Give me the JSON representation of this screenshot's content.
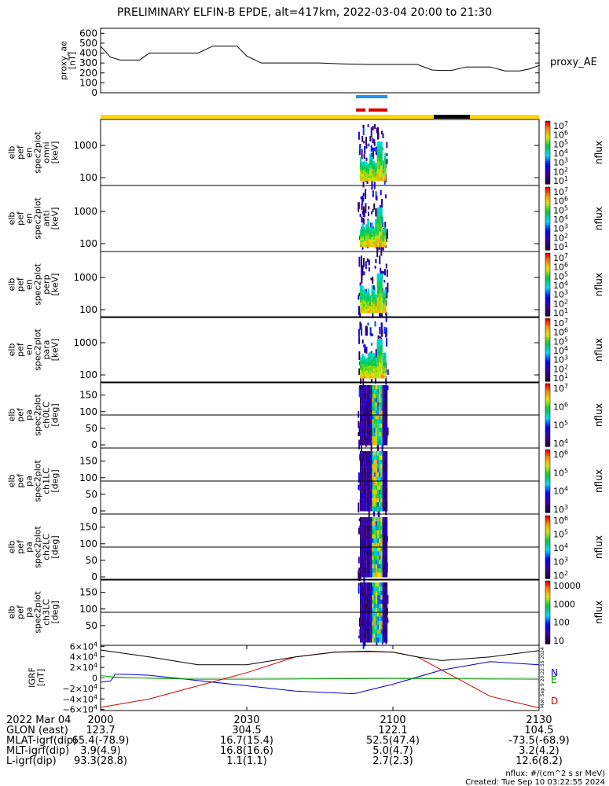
{
  "title": "PRELIMINARY ELFIN-B EPDE, alt=417km, 2022-03-04 20:00 to 21:30",
  "colors": {
    "ae_line": "#000000",
    "sat_bar_yellow": "#ffd700",
    "sat_bar_black": "#000000",
    "marker_blue": "#1e90ff",
    "marker_red": "#e00000",
    "igrf_n": "#0000cc",
    "igrf_e": "#00a000",
    "igrf_d": "#cc0000",
    "igrf_total": "#000000"
  },
  "chart_data": [
    {
      "type": "line",
      "id": "proxy_ae",
      "ylabel": "proxy_ae [nT]",
      "yticks": [
        "600",
        "500",
        "400",
        "300",
        "200",
        "100",
        "0"
      ],
      "ylim": [
        0,
        650
      ],
      "xlim": [
        0,
        90
      ],
      "series_label": "proxy_AE",
      "x": [
        0,
        2,
        4,
        6,
        8,
        10,
        12,
        15,
        18,
        20,
        23,
        26,
        28,
        30,
        33,
        36,
        40,
        45,
        50,
        55,
        58,
        60,
        62,
        65,
        68,
        70,
        72,
        75,
        78,
        80,
        83,
        86,
        88,
        90
      ],
      "y": [
        470,
        360,
        330,
        330,
        330,
        400,
        400,
        400,
        400,
        400,
        470,
        470,
        470,
        370,
        300,
        300,
        300,
        300,
        290,
        285,
        285,
        285,
        285,
        285,
        230,
        225,
        225,
        260,
        260,
        260,
        220,
        220,
        240,
        275
      ]
    },
    {
      "type": "heatmap",
      "id": "omni",
      "ylabel": "elb pef en spec2plot omni [keV]",
      "yticks": [
        "1000",
        "100"
      ],
      "colorbar": {
        "label": "nflux",
        "ticks": [
          "10^7",
          "10^6",
          "10^5",
          "10^4",
          "10^3",
          "10^2",
          "10^1"
        ]
      }
    },
    {
      "type": "heatmap",
      "id": "anti",
      "ylabel": "elb pef en spec2plot anti [keV]",
      "yticks": [
        "1000",
        "100"
      ],
      "colorbar": {
        "label": "nflux",
        "ticks": [
          "10^7",
          "10^6",
          "10^5",
          "10^4",
          "10^3",
          "10^2",
          "10^1"
        ]
      }
    },
    {
      "type": "heatmap",
      "id": "perp",
      "ylabel": "elb pef en spec2plot perp [keV]",
      "yticks": [
        "1000",
        "100"
      ],
      "colorbar": {
        "label": "nflux",
        "ticks": [
          "10^7",
          "10^6",
          "10^5",
          "10^4",
          "10^3",
          "10^2",
          "10^1"
        ]
      }
    },
    {
      "type": "heatmap",
      "id": "para",
      "ylabel": "elb pef en spec2plot para [keV]",
      "yticks": [
        "1000",
        "100"
      ],
      "colorbar": {
        "label": "nflux",
        "ticks": [
          "10^7",
          "10^6",
          "10^5",
          "10^4",
          "10^3",
          "10^2",
          "10^1"
        ]
      }
    },
    {
      "type": "heatmap",
      "id": "ch0LC",
      "ylabel": "elb pef pa spec2plot ch0LC [deg]",
      "yticks": [
        "150",
        "100",
        "50",
        "0"
      ],
      "colorbar": {
        "label": "nflux",
        "ticks": [
          "10^7",
          "10^6",
          "10^5",
          "10^4"
        ]
      }
    },
    {
      "type": "heatmap",
      "id": "ch1LC",
      "ylabel": "elb pef pa spec2plot ch1LC [deg]",
      "yticks": [
        "150",
        "100",
        "50",
        "0"
      ],
      "colorbar": {
        "label": "nflux",
        "ticks": [
          "10^6",
          "10^5",
          "10^4",
          "10^3"
        ]
      }
    },
    {
      "type": "heatmap",
      "id": "ch2LC",
      "ylabel": "elb pef pa spec2plot ch2LC [deg]",
      "yticks": [
        "150",
        "100",
        "50",
        "0"
      ],
      "colorbar": {
        "label": "nflux",
        "ticks": [
          "10^6",
          "10^5",
          "10^4",
          "10^3",
          "10^2"
        ]
      }
    },
    {
      "type": "heatmap",
      "id": "ch3LC",
      "ylabel": "elb pef pa spec2plot ch3LC [deg]",
      "yticks": [
        "150",
        "100",
        "50"
      ],
      "colorbar": {
        "label": "nflux",
        "ticks": [
          "10000",
          "1000",
          "100",
          "10"
        ]
      }
    },
    {
      "type": "line",
      "id": "igrf",
      "ylabel": "IGRF [nT]",
      "yticks": [
        "6×10^4",
        "4×10^4",
        "2×10^4",
        "0",
        "−2×10^4",
        "−4×10^4",
        "−6×10^4"
      ],
      "ylim": [
        -62000,
        62000
      ],
      "xlim": [
        0,
        90
      ],
      "series": [
        {
          "name": "N",
          "x": [
            0,
            2,
            2.5,
            3,
            5,
            10,
            20,
            30,
            40,
            52,
            60,
            70,
            80,
            90
          ],
          "y": [
            -8000,
            -6000,
            -500,
            7000,
            7000,
            5000,
            -5000,
            -15000,
            -25000,
            -30000,
            -12000,
            15000,
            31000,
            25000
          ]
        },
        {
          "name": "E",
          "x": [
            0,
            3,
            10,
            20,
            30,
            40,
            50,
            60,
            70,
            80,
            90
          ],
          "y": [
            4500,
            1500,
            -500,
            -2500,
            -2500,
            -2000,
            -1500,
            -1000,
            -1500,
            -2000,
            -2500
          ]
        },
        {
          "name": "D",
          "x": [
            0,
            10,
            20,
            30,
            40,
            48,
            55,
            60,
            65,
            70,
            80,
            90
          ],
          "y": [
            -56000,
            -40000,
            -15000,
            10000,
            40000,
            49000,
            50000,
            49000,
            40000,
            15000,
            -35000,
            -57000
          ]
        },
        {
          "name": "",
          "x": [
            0,
            10,
            20,
            30,
            40,
            48,
            55,
            60,
            65,
            70,
            80,
            90
          ],
          "y": [
            53000,
            40000,
            25000,
            25000,
            40000,
            49000,
            51000,
            49000,
            40000,
            33000,
            40000,
            52000
          ]
        }
      ]
    }
  ],
  "xaxis": {
    "ticks": [
      "2000",
      "2030",
      "2100",
      "2130"
    ],
    "rows": [
      {
        "label": "2022 Mar 04",
        "values": [
          "2000",
          "2030",
          "2100",
          "2130"
        ]
      },
      {
        "label": "GLON (east)",
        "values": [
          "123.7",
          "304.5",
          "122.1",
          "104.5"
        ]
      },
      {
        "label": "MLAT-igrf(dip)",
        "values": [
          "65.4(-78.9)",
          "16.7(15.4)",
          "52.5(47.4)",
          "-73.5(-68.9)"
        ]
      },
      {
        "label": "MLT-igrf(dip)",
        "values": [
          "3.9(4.9)",
          "16.8(16.6)",
          "5.0(4.7)",
          "3.2(4.2)"
        ]
      },
      {
        "label": "L-igrf(dip)",
        "values": [
          "93.3(28.8)",
          "1.1(1.1)",
          "2.7(2.3)",
          "12.6(8.2)"
        ]
      }
    ]
  },
  "footer": {
    "nflux_note": "nflux: #/(cm^2 s sr MeV)",
    "created": "Created: Tue Sep 10 03:22:55 2024",
    "stamp": "Mon Sep 9 20:22:55 2024"
  }
}
